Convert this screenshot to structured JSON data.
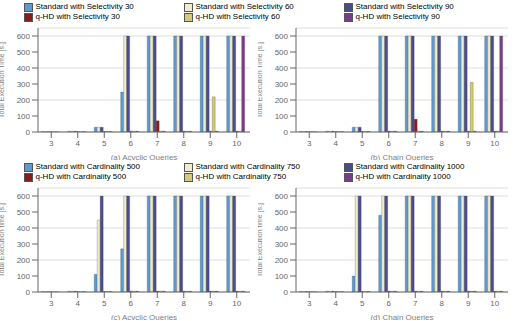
{
  "chart_data": [
    {
      "type": "bar",
      "xlabel": "(a) Acyclic Queries",
      "ylabel": "Total Execution Time [s.]",
      "categories": [
        "3",
        "4",
        "5",
        "6",
        "7",
        "8",
        "9",
        "10"
      ],
      "ylim": [
        0,
        650
      ],
      "yticks": [
        0,
        100,
        200,
        300,
        400,
        500,
        600
      ],
      "grid": true,
      "legend": "top",
      "series": [
        {
          "name": "Standard with Selectivity 30",
          "color": "#5B9BD5",
          "values": [
            2,
            5,
            30,
            250,
            600,
            600,
            600,
            600
          ]
        },
        {
          "name": "Standard with Selectivity 60",
          "color": "#F0ECC8",
          "values": [
            2,
            5,
            30,
            600,
            600,
            600,
            600,
            600
          ]
        },
        {
          "name": "Standard with Selectivity 90",
          "color": "#4B4B8F",
          "values": [
            2,
            5,
            30,
            600,
            600,
            600,
            600,
            600
          ]
        },
        {
          "name": "q-HD with Selectivity 30",
          "color": "#8B1A1A",
          "values": [
            1,
            2,
            3,
            5,
            70,
            5,
            5,
            5
          ]
        },
        {
          "name": "q-HD with Selectivity 60",
          "color": "#D4C870",
          "values": [
            1,
            2,
            3,
            5,
            5,
            5,
            220,
            5
          ]
        },
        {
          "name": "q-HD with Selectivity 90",
          "color": "#7B3B8B",
          "values": [
            1,
            2,
            3,
            5,
            5,
            5,
            5,
            600
          ]
        }
      ]
    },
    {
      "type": "bar",
      "xlabel": "(b) Chain Queries",
      "ylabel": "Total Execution Time [s.]",
      "categories": [
        "3",
        "4",
        "5",
        "6",
        "7",
        "8",
        "9",
        "10"
      ],
      "ylim": [
        0,
        650
      ],
      "yticks": [
        0,
        100,
        200,
        300,
        400,
        500,
        600
      ],
      "grid": true,
      "series": [
        {
          "name": "Standard with Selectivity 30",
          "color": "#5B9BD5",
          "values": [
            2,
            5,
            30,
            600,
            600,
            600,
            600,
            600
          ]
        },
        {
          "name": "Standard with Selectivity 60",
          "color": "#F0ECC8",
          "values": [
            2,
            5,
            30,
            600,
            600,
            600,
            600,
            600
          ]
        },
        {
          "name": "Standard with Selectivity 90",
          "color": "#4B4B8F",
          "values": [
            2,
            5,
            30,
            600,
            600,
            600,
            600,
            600
          ]
        },
        {
          "name": "q-HD with Selectivity 30",
          "color": "#8B1A1A",
          "values": [
            1,
            2,
            3,
            5,
            80,
            5,
            5,
            5
          ]
        },
        {
          "name": "q-HD with Selectivity 60",
          "color": "#D4C870",
          "values": [
            1,
            2,
            3,
            5,
            5,
            5,
            310,
            5
          ]
        },
        {
          "name": "q-HD with Selectivity 90",
          "color": "#7B3B8B",
          "values": [
            1,
            2,
            3,
            5,
            5,
            5,
            5,
            600
          ]
        }
      ]
    },
    {
      "type": "bar",
      "xlabel": "(c) Acyclic Queries",
      "ylabel": "Total Execution time [s.]",
      "categories": [
        "3",
        "4",
        "5",
        "6",
        "7",
        "8",
        "9",
        "10"
      ],
      "ylim": [
        0,
        650
      ],
      "yticks": [
        0,
        100,
        200,
        300,
        400,
        500,
        600
      ],
      "grid": true,
      "legend": "top",
      "series": [
        {
          "name": "Standard with Cardinality 500",
          "color": "#5B9BD5",
          "values": [
            2,
            5,
            110,
            270,
            600,
            600,
            600,
            600
          ]
        },
        {
          "name": "Standard with Cardinality 750",
          "color": "#F0ECC8",
          "values": [
            2,
            5,
            450,
            600,
            600,
            600,
            600,
            600
          ]
        },
        {
          "name": "Standard with Cardinality 1000",
          "color": "#4B4B8F",
          "values": [
            2,
            5,
            600,
            600,
            600,
            600,
            600,
            600
          ]
        },
        {
          "name": "q-HD with Cardinality 500",
          "color": "#8B1A1A",
          "values": [
            1,
            2,
            3,
            5,
            5,
            5,
            5,
            5
          ]
        },
        {
          "name": "q-HD with Cardinality 750",
          "color": "#D4C870",
          "values": [
            1,
            2,
            3,
            5,
            5,
            5,
            5,
            5
          ]
        },
        {
          "name": "q-HD with Cardinality 1000",
          "color": "#7B3B8B",
          "values": [
            1,
            2,
            3,
            5,
            5,
            5,
            5,
            5
          ]
        }
      ]
    },
    {
      "type": "bar",
      "xlabel": "(d) Chain Queries",
      "ylabel": "Total Execution time [s.]",
      "categories": [
        "3",
        "4",
        "5",
        "6",
        "7",
        "8",
        "9",
        "10"
      ],
      "ylim": [
        0,
        650
      ],
      "yticks": [
        0,
        100,
        200,
        300,
        400,
        500,
        600
      ],
      "grid": true,
      "series": [
        {
          "name": "Standard with Cardinality 500",
          "color": "#5B9BD5",
          "values": [
            2,
            5,
            100,
            480,
            600,
            600,
            600,
            600
          ]
        },
        {
          "name": "Standard with Cardinality 750",
          "color": "#F0ECC8",
          "values": [
            2,
            5,
            600,
            600,
            600,
            600,
            600,
            600
          ]
        },
        {
          "name": "Standard with Cardinality 1000",
          "color": "#4B4B8F",
          "values": [
            2,
            5,
            600,
            600,
            600,
            600,
            600,
            600
          ]
        },
        {
          "name": "q-HD with Cardinality 500",
          "color": "#8B1A1A",
          "values": [
            1,
            2,
            3,
            5,
            5,
            5,
            5,
            5
          ]
        },
        {
          "name": "q-HD with Cardinality 750",
          "color": "#D4C870",
          "values": [
            1,
            2,
            3,
            5,
            5,
            5,
            5,
            5
          ]
        },
        {
          "name": "q-HD with Cardinality 1000",
          "color": "#7B3B8B",
          "values": [
            1,
            2,
            3,
            5,
            5,
            5,
            5,
            5
          ]
        }
      ]
    }
  ]
}
